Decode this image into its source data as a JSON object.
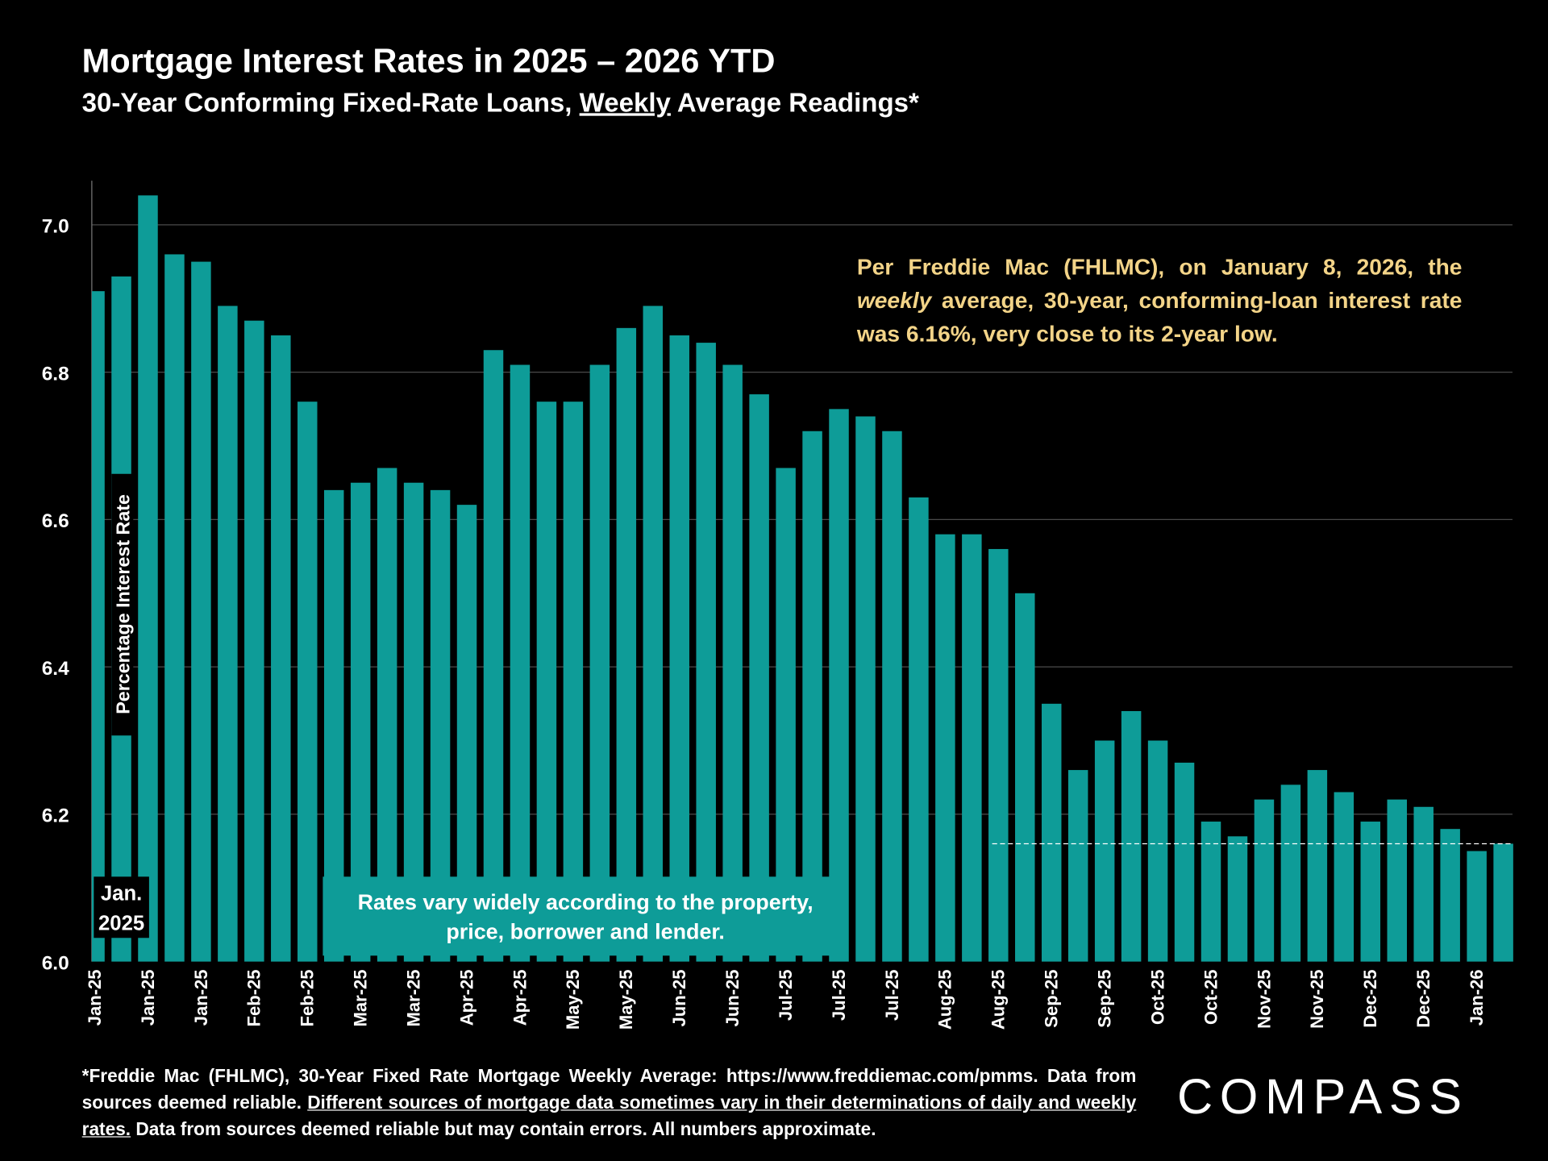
{
  "chart_data": {
    "type": "bar",
    "title": "Mortgage Interest Rates in 2025 – 2026 YTD",
    "subtitle_parts": [
      "30-Year Conforming Fixed-Rate Loans, ",
      "Weekly",
      " Average Readings*"
    ],
    "y_label": "Percentage Interest Rate",
    "categories": [
      "Jan-25",
      null,
      "Jan-25",
      null,
      "Jan-25",
      null,
      "Feb-25",
      null,
      "Feb-25",
      null,
      "Mar-25",
      null,
      "Mar-25",
      null,
      "Apr-25",
      null,
      "Apr-25",
      null,
      "May-25",
      null,
      "May-25",
      null,
      "Jun-25",
      null,
      "Jun-25",
      null,
      "Jul-25",
      null,
      "Jul-25",
      null,
      "Jul-25",
      null,
      "Aug-25",
      null,
      "Aug-25",
      null,
      "Sep-25",
      null,
      "Sep-25",
      null,
      "Oct-25",
      null,
      "Oct-25",
      null,
      "Nov-25",
      null,
      "Nov-25",
      null,
      "Dec-25",
      null,
      "Dec-25",
      null,
      "Jan-26",
      null
    ],
    "values": [
      6.91,
      6.93,
      7.04,
      6.96,
      6.95,
      6.89,
      6.87,
      6.85,
      6.76,
      6.64,
      6.65,
      6.67,
      6.65,
      6.64,
      6.62,
      6.83,
      6.81,
      6.76,
      6.76,
      6.81,
      6.86,
      6.89,
      6.85,
      6.84,
      6.81,
      6.77,
      6.67,
      6.72,
      6.75,
      6.74,
      6.72,
      6.63,
      6.58,
      6.58,
      6.56,
      6.5,
      6.35,
      6.26,
      6.3,
      6.34,
      6.3,
      6.27,
      6.19,
      6.17,
      6.22,
      6.24,
      6.26,
      6.23,
      6.19,
      6.22,
      6.21,
      6.18,
      6.15,
      6.16
    ],
    "color": "#0e9c98",
    "ylim": [
      6,
      7.06
    ],
    "yticks": [
      {
        "value": 6,
        "label": "6.0"
      },
      {
        "value": 6.2,
        "label": "6.2"
      },
      {
        "value": 6.4,
        "label": "6.4"
      },
      {
        "value": 6.6,
        "label": "6.6"
      },
      {
        "value": 6.8,
        "label": "6.8"
      },
      {
        "value": 7,
        "label": "7.0"
      }
    ],
    "grid": true,
    "reference_line": 6.16,
    "start_label": [
      "Jan.",
      "2025"
    ],
    "box_note": [
      "Rates vary widely according to the property,",
      "price, borrower and lender."
    ],
    "note_parts": [
      "Per Freddie Mac (FHLMC), on January 8, 2026, the ",
      "weekly",
      " average, 30-year, conforming-loan interest rate was 6.16%, very close to its 2-year low."
    ],
    "footnote_parts": [
      "*Freddie Mac (FHLMC), 30-Year Fixed Rate Mortgage Weekly Average:  https://www.freddiemac.com/pmms. Data from sources deemed reliable. ",
      "Different sources of mortgage data sometimes vary in their determinations of daily and weekly rates.",
      " Data from sources deemed reliable but may contain errors. All numbers approximate."
    ],
    "logo": "COMPASS"
  }
}
